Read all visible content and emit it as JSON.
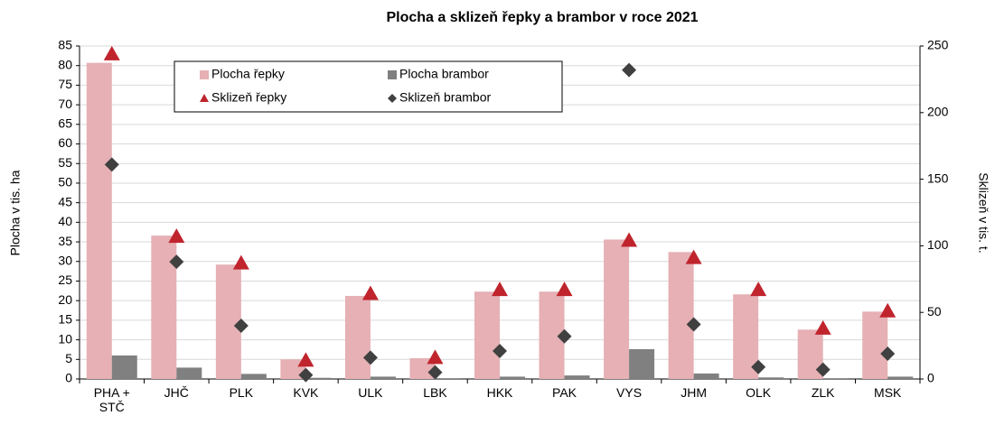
{
  "chart_data": {
    "type": "bar",
    "title": "Plocha a sklizeň řepky a brambor v roce 2021",
    "ylabel": "Plocha v tis. ha",
    "y2label": "Sklizeň v tis. t.",
    "categories": [
      "PHA + STČ",
      "JHČ",
      "PLK",
      "KVK",
      "ULK",
      "LBK",
      "HKK",
      "PAK",
      "VYS",
      "JHM",
      "OLK",
      "ZLK",
      "MSK"
    ],
    "series": [
      {
        "name": "Plocha řepky",
        "kind": "bar",
        "color": "#e6b0b4",
        "values": [
          80.7,
          36.6,
          29.2,
          5.0,
          21.2,
          5.3,
          22.3,
          22.3,
          35.6,
          32.4,
          21.6,
          12.6,
          17.2
        ]
      },
      {
        "name": "Plocha brambor",
        "kind": "bar",
        "color": "#808080",
        "values": [
          6.0,
          2.9,
          1.3,
          0.3,
          0.6,
          0.2,
          0.6,
          0.9,
          7.6,
          1.4,
          0.4,
          0.2,
          0.6
        ]
      },
      {
        "name": "Sklizeň řepky",
        "kind": "marker",
        "marker": "triangle",
        "axis": "y2",
        "color": "#c0242c",
        "values": [
          244,
          107,
          87,
          14,
          64,
          16,
          67,
          67,
          104,
          91,
          67,
          38,
          51
        ]
      },
      {
        "name": "Sklizeň brambor",
        "kind": "marker",
        "marker": "diamond",
        "axis": "y2",
        "color": "#404040",
        "values": [
          161,
          88,
          40,
          3,
          16,
          5,
          21,
          32,
          232,
          41,
          9,
          7,
          19
        ]
      }
    ],
    "ylim": [
      0,
      85
    ],
    "yticks": [
      0,
      5,
      10,
      15,
      20,
      25,
      30,
      35,
      40,
      45,
      50,
      55,
      60,
      65,
      70,
      75,
      80,
      85
    ],
    "y2lim": [
      0,
      250
    ],
    "y2ticks": [
      0,
      50,
      100,
      150,
      200,
      250
    ],
    "grid": true,
    "legend": "top-left"
  }
}
